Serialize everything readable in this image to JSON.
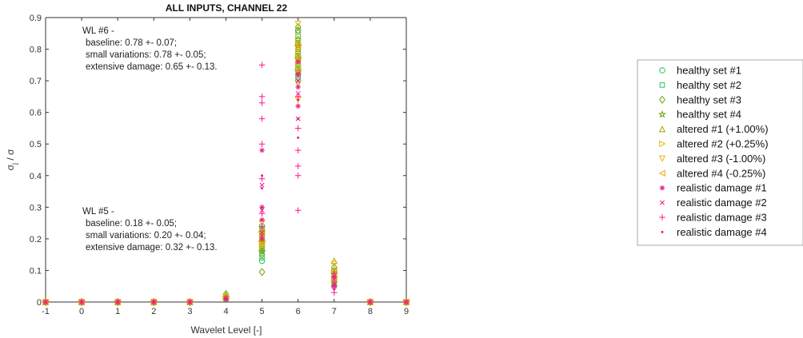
{
  "chart_data": {
    "type": "scatter",
    "title": "ALL INPUTS, CHANNEL 22",
    "xlabel": "Wavelet Level [-]",
    "ylabel": "σ_j / σ",
    "xlim": [
      -1,
      9
    ],
    "ylim": [
      0,
      0.9
    ],
    "xticks": [
      "-1",
      "0",
      "1",
      "2",
      "3",
      "4",
      "5",
      "6",
      "7",
      "8",
      "9"
    ],
    "yticks": [
      "0",
      "0.1",
      "0.2",
      "0.3",
      "0.4",
      "0.5",
      "0.6",
      "0.7",
      "0.8",
      "0.9"
    ],
    "grid": false,
    "legend_position": "right, outside plot",
    "annotations": [
      {
        "lines": [
          "WL #6 -",
          "baseline: 0.78 +- 0.07;",
          "small variations: 0.78 +- 0.05;",
          "extensive damage: 0.65 +- 0.13."
        ]
      },
      {
        "lines": [
          "WL #5 -",
          "baseline: 0.18 +- 0.05;",
          "small variations: 0.20 +- 0.04;",
          "extensive damage: 0.32 +- 0.13."
        ]
      }
    ],
    "series": [
      {
        "name": "healthy set #1",
        "marker": "circle",
        "color": "#22c55e",
        "points": [
          [
            -1,
            0
          ],
          [
            0,
            0
          ],
          [
            1,
            0
          ],
          [
            2,
            0
          ],
          [
            3,
            0
          ],
          [
            4,
            0.01
          ],
          [
            4,
            0.015
          ],
          [
            5,
            0.13
          ],
          [
            5,
            0.16
          ],
          [
            5,
            0.19
          ],
          [
            5,
            0.22
          ],
          [
            5,
            0.24
          ],
          [
            6,
            0.7
          ],
          [
            6,
            0.74
          ],
          [
            6,
            0.78
          ],
          [
            6,
            0.82
          ],
          [
            6,
            0.86
          ],
          [
            7,
            0.05
          ],
          [
            7,
            0.08
          ],
          [
            7,
            0.1
          ],
          [
            8,
            0
          ],
          [
            9,
            0
          ]
        ]
      },
      {
        "name": "healthy set #2",
        "marker": "square",
        "color": "#22c55e",
        "points": [
          [
            -1,
            0
          ],
          [
            0,
            0
          ],
          [
            1,
            0
          ],
          [
            2,
            0
          ],
          [
            3,
            0
          ],
          [
            4,
            0.012
          ],
          [
            5,
            0.14
          ],
          [
            5,
            0.17
          ],
          [
            5,
            0.2
          ],
          [
            5,
            0.23
          ],
          [
            6,
            0.72
          ],
          [
            6,
            0.76
          ],
          [
            6,
            0.8
          ],
          [
            6,
            0.84
          ],
          [
            7,
            0.06
          ],
          [
            7,
            0.09
          ],
          [
            8,
            0
          ],
          [
            9,
            0
          ]
        ]
      },
      {
        "name": "healthy set #3",
        "marker": "diamond",
        "color": "#65a30d",
        "points": [
          [
            -1,
            0
          ],
          [
            0,
            0
          ],
          [
            1,
            0
          ],
          [
            2,
            0
          ],
          [
            3,
            0
          ],
          [
            4,
            0.018
          ],
          [
            4,
            0.025
          ],
          [
            5,
            0.095
          ],
          [
            5,
            0.15
          ],
          [
            5,
            0.18
          ],
          [
            5,
            0.21
          ],
          [
            6,
            0.71
          ],
          [
            6,
            0.75
          ],
          [
            6,
            0.79
          ],
          [
            6,
            0.83
          ],
          [
            6,
            0.87
          ],
          [
            7,
            0.07
          ],
          [
            7,
            0.11
          ],
          [
            8,
            0
          ],
          [
            9,
            0
          ]
        ]
      },
      {
        "name": "healthy set #4",
        "marker": "star",
        "color": "#65a30d",
        "points": [
          [
            -1,
            0
          ],
          [
            0,
            0
          ],
          [
            1,
            0
          ],
          [
            2,
            0
          ],
          [
            3,
            0
          ],
          [
            4,
            0.014
          ],
          [
            5,
            0.16
          ],
          [
            5,
            0.19
          ],
          [
            5,
            0.22
          ],
          [
            6,
            0.73
          ],
          [
            6,
            0.77
          ],
          [
            6,
            0.81
          ],
          [
            7,
            0.06
          ],
          [
            7,
            0.09
          ],
          [
            8,
            0
          ],
          [
            9,
            0
          ]
        ]
      },
      {
        "name": "altered #1 (+1.00%)",
        "marker": "triangle-up",
        "color": "#a3a300",
        "points": [
          [
            -1,
            0
          ],
          [
            0,
            0
          ],
          [
            1,
            0
          ],
          [
            2,
            0
          ],
          [
            3,
            0
          ],
          [
            4,
            0.022
          ],
          [
            5,
            0.17
          ],
          [
            5,
            0.2
          ],
          [
            5,
            0.23
          ],
          [
            6,
            0.74
          ],
          [
            6,
            0.78
          ],
          [
            6,
            0.82
          ],
          [
            6,
            0.86
          ],
          [
            7,
            0.08
          ],
          [
            7,
            0.13
          ],
          [
            8,
            0
          ],
          [
            9,
            0
          ]
        ]
      },
      {
        "name": "altered #2 (+0.25%)",
        "marker": "triangle-right",
        "color": "#eab308",
        "points": [
          [
            -1,
            0
          ],
          [
            0,
            0
          ],
          [
            1,
            0
          ],
          [
            2,
            0
          ],
          [
            3,
            0
          ],
          [
            4,
            0.012
          ],
          [
            5,
            0.18
          ],
          [
            5,
            0.21
          ],
          [
            6,
            0.75
          ],
          [
            6,
            0.79
          ],
          [
            6,
            0.83
          ],
          [
            7,
            0.07
          ],
          [
            7,
            0.1
          ],
          [
            8,
            0
          ],
          [
            9,
            0
          ]
        ]
      },
      {
        "name": "altered #3 (-1.00%)",
        "marker": "triangle-down",
        "color": "#f0b400",
        "points": [
          [
            -1,
            0
          ],
          [
            0,
            0
          ],
          [
            1,
            0
          ],
          [
            2,
            0
          ],
          [
            3,
            0
          ],
          [
            4,
            0.016
          ],
          [
            5,
            0.18
          ],
          [
            5,
            0.22
          ],
          [
            5,
            0.25
          ],
          [
            6,
            0.64
          ],
          [
            6,
            0.69
          ],
          [
            6,
            0.76
          ],
          [
            6,
            0.8
          ],
          [
            6,
            0.88
          ],
          [
            7,
            0.08
          ],
          [
            7,
            0.12
          ],
          [
            8,
            0
          ],
          [
            9,
            0
          ]
        ]
      },
      {
        "name": "altered #4 (-0.25%)",
        "marker": "triangle-left",
        "color": "#f59e0b",
        "points": [
          [
            -1,
            0
          ],
          [
            0,
            0
          ],
          [
            1,
            0
          ],
          [
            2,
            0
          ],
          [
            3,
            0
          ],
          [
            4,
            0.012
          ],
          [
            5,
            0.19
          ],
          [
            5,
            0.22
          ],
          [
            6,
            0.73
          ],
          [
            6,
            0.77
          ],
          [
            6,
            0.81
          ],
          [
            7,
            0.07
          ],
          [
            7,
            0.1
          ],
          [
            8,
            0
          ],
          [
            9,
            0
          ]
        ]
      },
      {
        "name": "realistic damage #1",
        "marker": "asterisk",
        "color": "#ec1c8c",
        "points": [
          [
            -1,
            0
          ],
          [
            0,
            0
          ],
          [
            1,
            0
          ],
          [
            2,
            0
          ],
          [
            3,
            0
          ],
          [
            4,
            0.01
          ],
          [
            5,
            0.2
          ],
          [
            5,
            0.26
          ],
          [
            5,
            0.3
          ],
          [
            5,
            0.48
          ],
          [
            6,
            0.62
          ],
          [
            6,
            0.68
          ],
          [
            6,
            0.72
          ],
          [
            6,
            0.76
          ],
          [
            7,
            0.05
          ],
          [
            7,
            0.08
          ],
          [
            8,
            0
          ],
          [
            9,
            0
          ]
        ]
      },
      {
        "name": "realistic damage #2",
        "marker": "x",
        "color": "#ec1c8c",
        "points": [
          [
            -1,
            0
          ],
          [
            0,
            0
          ],
          [
            1,
            0
          ],
          [
            2,
            0
          ],
          [
            3,
            0
          ],
          [
            4,
            0.012
          ],
          [
            5,
            0.22
          ],
          [
            5,
            0.29
          ],
          [
            5,
            0.37
          ],
          [
            6,
            0.58
          ],
          [
            6,
            0.66
          ],
          [
            6,
            0.7
          ],
          [
            7,
            0.05
          ],
          [
            7,
            0.07
          ],
          [
            8,
            0
          ],
          [
            9,
            0
          ]
        ]
      },
      {
        "name": "realistic damage #3",
        "marker": "plus",
        "color": "#ff1493",
        "points": [
          [
            -1,
            0
          ],
          [
            0,
            0
          ],
          [
            1,
            0
          ],
          [
            2,
            0
          ],
          [
            3,
            0
          ],
          [
            4,
            0.01
          ],
          [
            5,
            0.24
          ],
          [
            5,
            0.28
          ],
          [
            5,
            0.39
          ],
          [
            5,
            0.5
          ],
          [
            5,
            0.58
          ],
          [
            5,
            0.63
          ],
          [
            5,
            0.65
          ],
          [
            5,
            0.75
          ],
          [
            6,
            0.29
          ],
          [
            6,
            0.4
          ],
          [
            6,
            0.43
          ],
          [
            6,
            0.48
          ],
          [
            6,
            0.55
          ],
          [
            6,
            0.65
          ],
          [
            6,
            0.72
          ],
          [
            7,
            0.03
          ],
          [
            7,
            0.05
          ],
          [
            7,
            0.09
          ],
          [
            8,
            0
          ],
          [
            9,
            0
          ]
        ]
      },
      {
        "name": "realistic damage #4",
        "marker": "point",
        "color": "#ec1c8c",
        "points": [
          [
            -1,
            0
          ],
          [
            0,
            0
          ],
          [
            1,
            0
          ],
          [
            2,
            0
          ],
          [
            3,
            0
          ],
          [
            4,
            0.01
          ],
          [
            5,
            0.21
          ],
          [
            5,
            0.3
          ],
          [
            5,
            0.36
          ],
          [
            5,
            0.4
          ],
          [
            6,
            0.52
          ],
          [
            6,
            0.58
          ],
          [
            6,
            0.64
          ],
          [
            6,
            0.7
          ],
          [
            7,
            0.04
          ],
          [
            7,
            0.06
          ],
          [
            8,
            0
          ],
          [
            9,
            0
          ]
        ]
      }
    ]
  }
}
